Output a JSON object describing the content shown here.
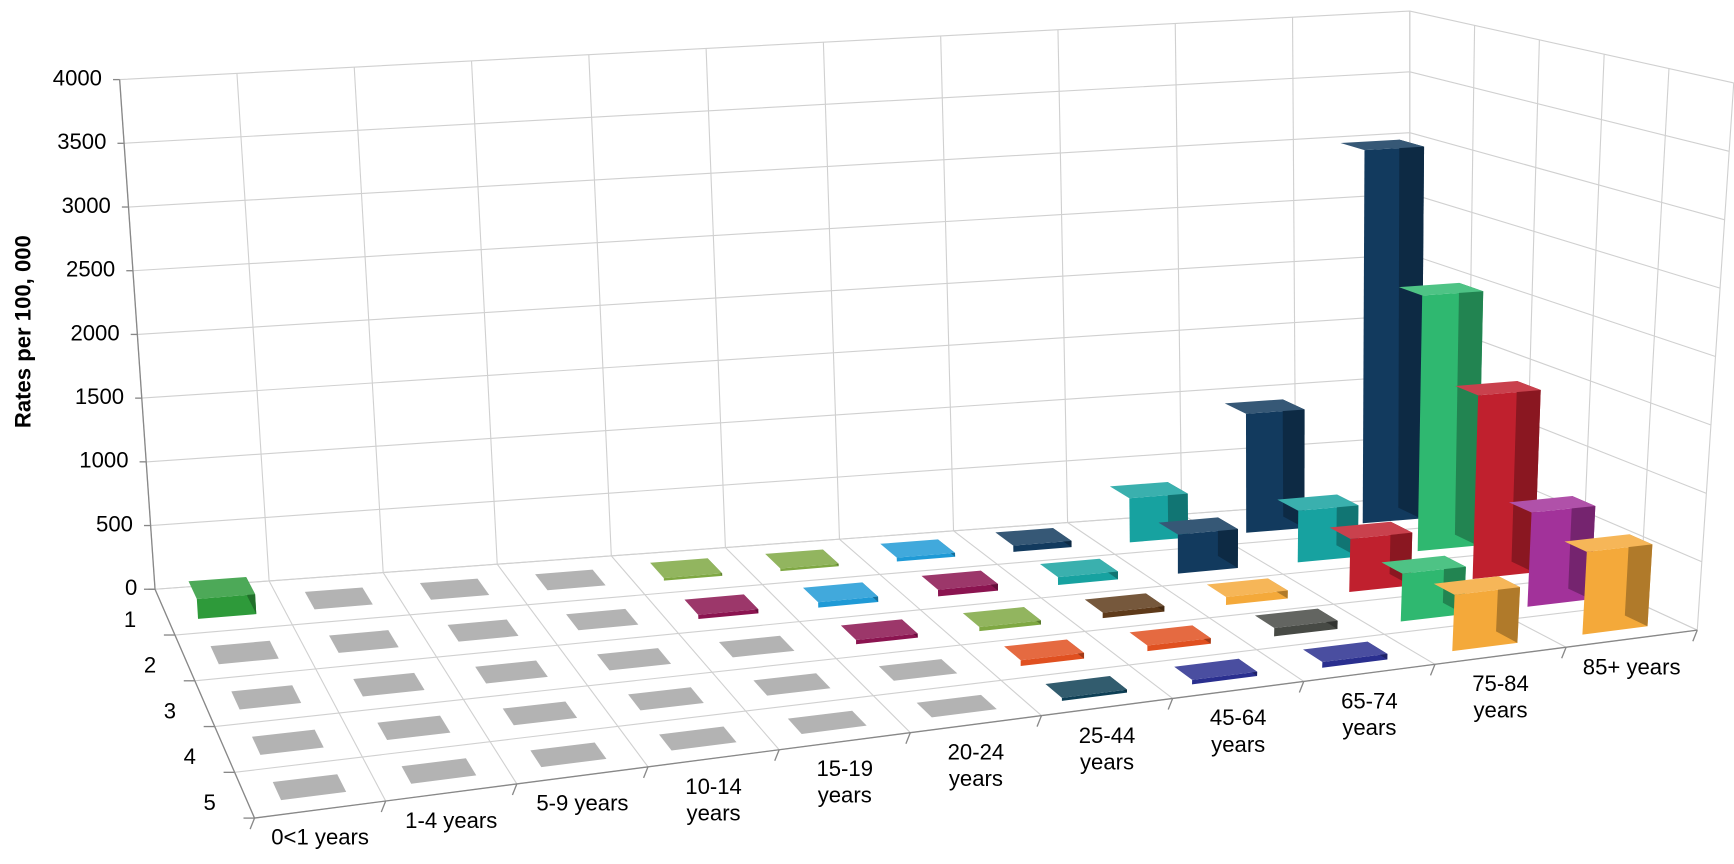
{
  "chart_data": {
    "type": "bar3d",
    "y_label": "Rates per 100, 000",
    "categories": [
      "0<1 years",
      "1-4 years",
      "5-9 years",
      "10-14 years",
      "15-19 years",
      "20-24 years",
      "25-44 years",
      "45-64 years",
      "65-74 years",
      "75-84 years",
      "85+ years"
    ],
    "series": [
      {
        "name": "1",
        "values": [
          150,
          0,
          0,
          0,
          20,
          20,
          30,
          50,
          350,
          950,
          3000
        ],
        "colors": [
          "#2e9a3a",
          "#a6a6a6",
          "#a6a6a6",
          "#a6a6a6",
          "#7fa843",
          "#7fa843",
          "#1f9ad6",
          "#123a5e",
          "#17a2a0",
          "#123a5e",
          "#123a5e"
        ]
      },
      {
        "name": "2",
        "values": [
          0,
          0,
          0,
          0,
          30,
          40,
          50,
          60,
          300,
          400,
          2000
        ],
        "colors": [
          "#a6a6a6",
          "#a6a6a6",
          "#a6a6a6",
          "#a6a6a6",
          "#8b1450",
          "#1f9ad6",
          "#8b1450",
          "#17a2a0",
          "#123a5e",
          "#17a2a0",
          "#2fb870"
        ]
      },
      {
        "name": "3",
        "values": [
          0,
          0,
          0,
          0,
          0,
          30,
          30,
          40,
          60,
          400,
          1400
        ],
        "colors": [
          "#a6a6a6",
          "#a6a6a6",
          "#a6a6a6",
          "#a6a6a6",
          "#a6a6a6",
          "#8b1450",
          "#7fa843",
          "#5e3a1a",
          "#f4a93a",
          "#c0202e",
          "#c0202e"
        ]
      },
      {
        "name": "4",
        "values": [
          0,
          0,
          0,
          0,
          0,
          0,
          40,
          40,
          60,
          350,
          700
        ],
        "colors": [
          "#a6a6a6",
          "#a6a6a6",
          "#a6a6a6",
          "#a6a6a6",
          "#a6a6a6",
          "#a6a6a6",
          "#e05020",
          "#e05020",
          "#474a45",
          "#2fb870",
          "#a2329a"
        ]
      },
      {
        "name": "5",
        "values": [
          0,
          0,
          0,
          0,
          0,
          0,
          20,
          30,
          40,
          400,
          600
        ],
        "colors": [
          "#a6a6a6",
          "#a6a6a6",
          "#a6a6a6",
          "#a6a6a6",
          "#a6a6a6",
          "#a6a6a6",
          "#0e3f55",
          "#2a2f8f",
          "#2a2f8f",
          "#f4a93a",
          "#f4a93a"
        ]
      }
    ],
    "ylim": [
      0,
      4000
    ],
    "yticks": [
      0,
      500,
      1000,
      1500,
      2000,
      2500,
      3000,
      3500,
      4000
    ],
    "grid": true
  }
}
